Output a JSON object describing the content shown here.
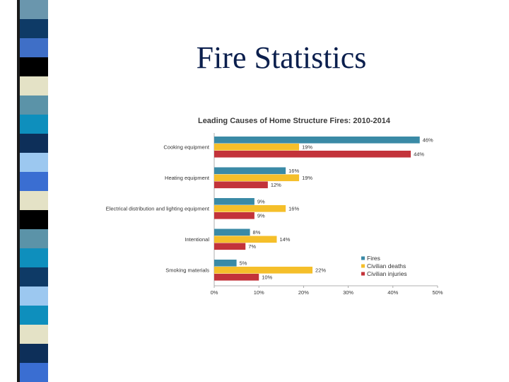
{
  "slide": {
    "title": "Fire Statistics",
    "strip_colors": [
      "#6a96ad",
      "#0e3a66",
      "#3f6fc7",
      "#000000",
      "#e4e2c6",
      "#5b93a8",
      "#0e8fbd",
      "#0d2f59",
      "#9cc8f0",
      "#3a6ed2",
      "#e4e2c6",
      "#000000",
      "#5b93a8",
      "#0e8fbd",
      "#0e3a66",
      "#9cc8f0",
      "#0e8fbd",
      "#e4e2c6",
      "#0d2f59",
      "#3a6ed2"
    ]
  },
  "chart_data": {
    "type": "bar",
    "orientation": "horizontal",
    "title": "Leading Causes of Home Structure Fires: 2010-2014",
    "categories": [
      "Cooking equipment",
      "Heating equipment",
      "Electrical distribution and lighting equipment",
      "Intentional",
      "Smoking materials"
    ],
    "series": [
      {
        "name": "Fires",
        "color": "#3a8aa6",
        "values": [
          46,
          16,
          9,
          8,
          5
        ]
      },
      {
        "name": "Civilian deaths",
        "color": "#f5bf2a",
        "values": [
          19,
          19,
          16,
          14,
          22
        ]
      },
      {
        "name": "Civilian injuries",
        "color": "#c3333a",
        "values": [
          44,
          12,
          9,
          7,
          10
        ]
      }
    ],
    "value_suffix": "%",
    "xlim": [
      0,
      50
    ],
    "x_ticks": [
      "0%",
      "10%",
      "20%",
      "30%",
      "40%",
      "50%"
    ],
    "legend_position": "bottom-right",
    "grid": false
  }
}
